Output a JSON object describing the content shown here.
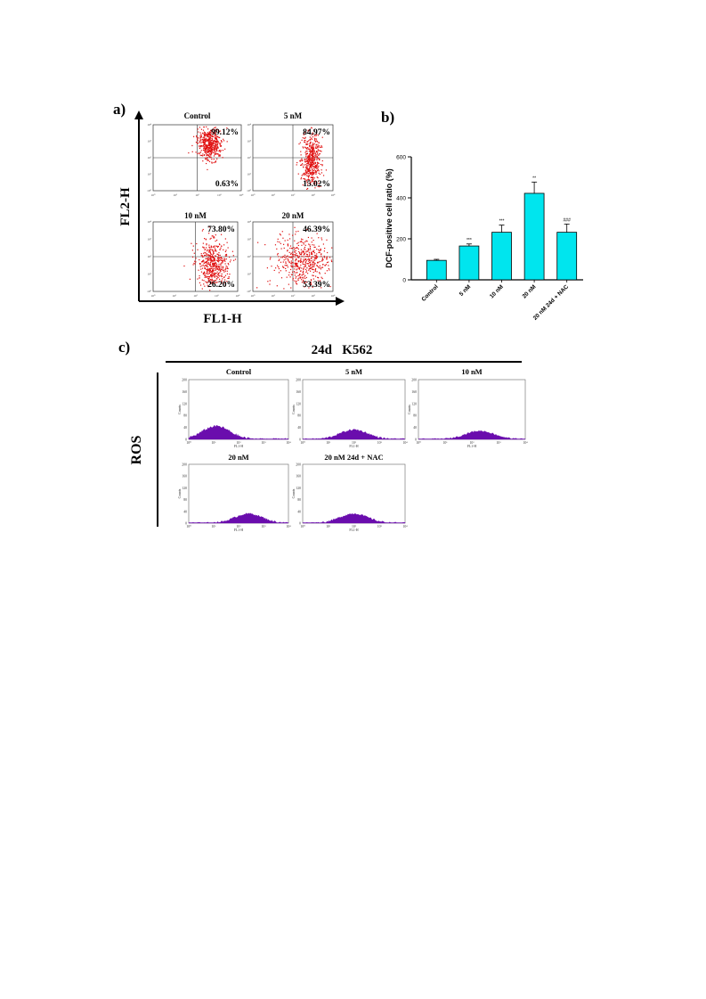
{
  "panel_a": {
    "label": "a)",
    "ylabel": "FL2-H",
    "xlabel": "FL1-H",
    "plots": [
      {
        "title": "Control",
        "upper_right": "99.12%",
        "lower_right": "0.63%",
        "cluster": "upper"
      },
      {
        "title": "5 nM",
        "upper_right": "84.97%",
        "lower_right": "15.02%",
        "cluster": "mid"
      },
      {
        "title": "10 nM",
        "upper_right": "73.80%",
        "lower_right": "26.20%",
        "cluster": "lower"
      },
      {
        "title": "20 nM",
        "upper_right": "46.39%",
        "lower_right": "53.39%",
        "cluster": "spread"
      }
    ],
    "axis_tick_labels": [
      "10⁰",
      "10¹",
      "10²",
      "10³",
      "10⁴"
    ],
    "scatter_color": "#e01010"
  },
  "panel_b": {
    "label": "b)",
    "chart_data": {
      "type": "bar",
      "ylabel": "DCF-positive cell ratio (%)",
      "categories": [
        "Control",
        "5 nM",
        "10 nM",
        "20 nM",
        "20 nM 24d + NAC"
      ],
      "values": [
        95,
        165,
        232,
        422,
        232
      ],
      "errors": [
        5,
        10,
        35,
        55,
        40
      ],
      "significance": [
        "",
        "***",
        "***",
        "**",
        "###"
      ],
      "ylim": [
        0,
        600
      ],
      "yticks": [
        0,
        200,
        400,
        600
      ],
      "bar_color": "#00e5ee"
    }
  },
  "panel_c": {
    "label": "c)",
    "header": "24d   K562",
    "ylabel": "ROS",
    "axis_tick_labels": [
      "10⁰",
      "10¹",
      "10²",
      "10³",
      "10⁴"
    ],
    "xaxis_name": "FL1-H",
    "yaxis_name": "Counts",
    "yticks": [
      "0",
      "40",
      "80",
      "120",
      "160",
      "200"
    ],
    "fill_color": "#6a0dad",
    "histograms": [
      {
        "title": "Control",
        "peak": 1.1,
        "height": 0.22
      },
      {
        "title": "5 nM",
        "peak": 2.0,
        "height": 0.16
      },
      {
        "title": "10 nM",
        "peak": 2.3,
        "height": 0.14
      },
      {
        "title": "20 nM",
        "peak": 2.4,
        "height": 0.16
      },
      {
        "title": "20 nM 24d + NAC",
        "peak": 2.0,
        "height": 0.16
      }
    ]
  }
}
